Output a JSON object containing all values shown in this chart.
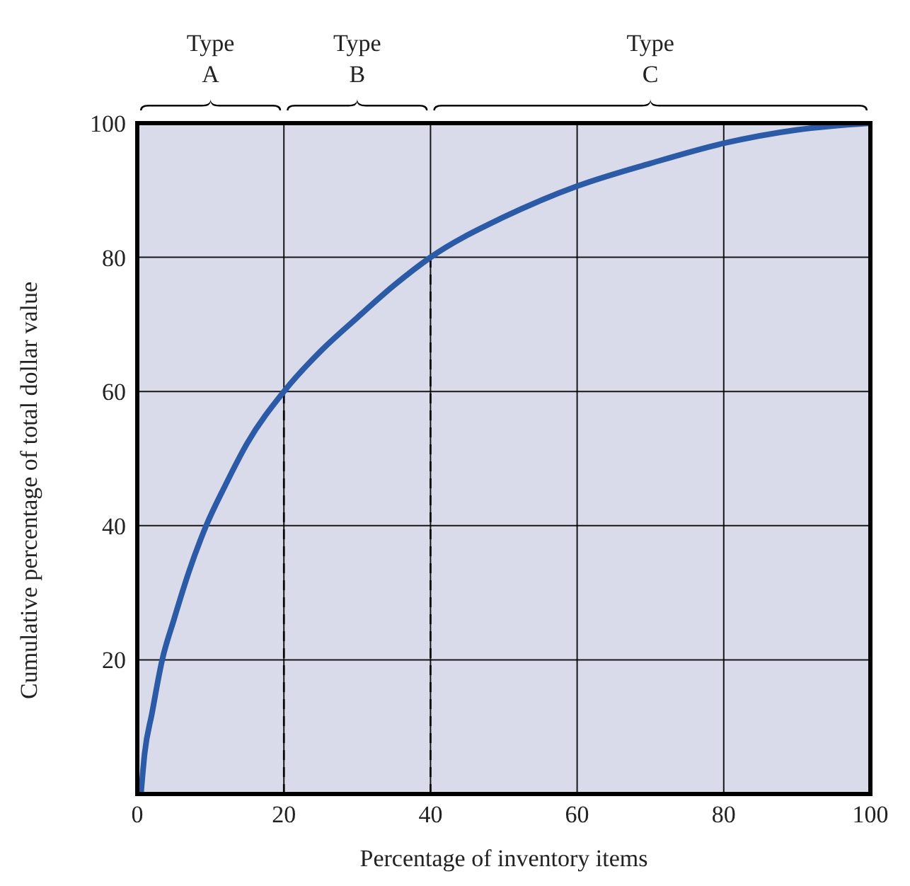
{
  "chart_data": {
    "type": "line",
    "xlabel": "Percentage of inventory items",
    "ylabel": "Cumulative percentage of total dollar value",
    "series": [
      {
        "color": "#2b5aa6",
        "x": [
          0.5,
          1,
          2,
          3.4,
          5,
          7,
          9.4,
          12,
          15,
          20,
          25,
          30,
          35,
          40,
          50,
          60,
          70,
          80,
          90,
          100
        ],
        "values": [
          0,
          6,
          12,
          20,
          26,
          33,
          40,
          46,
          52.3,
          60,
          66,
          71,
          75.8,
          80,
          86,
          90.6,
          94,
          97,
          99,
          100
        ]
      }
    ],
    "xlim": [
      0,
      100
    ],
    "ylim": [
      0,
      100
    ],
    "xticks": [
      0,
      20,
      40,
      60,
      80,
      100
    ],
    "yticks": [
      20,
      40,
      60,
      80,
      100
    ],
    "grid": true,
    "marker": "none",
    "line_style": "solid",
    "ref_lines": [
      {
        "axis": "x",
        "value": 20,
        "line_style": "dashed",
        "color": "#000000"
      },
      {
        "axis": "x",
        "value": 40,
        "line_style": "dashed",
        "color": "#000000"
      }
    ],
    "annotations": [
      "Type A",
      "Type B",
      "Type C"
    ]
  }
}
